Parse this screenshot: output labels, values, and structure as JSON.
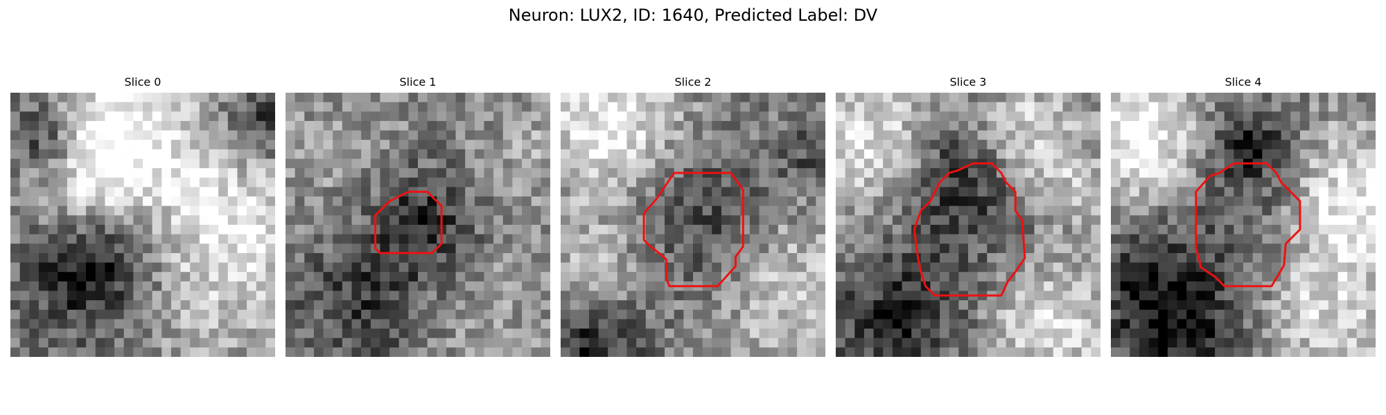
{
  "figure": {
    "title": "Neuron: LUX2, ID: 1640, Predicted Label: DV"
  },
  "colors": {
    "contour": "#ee1111",
    "background": "#ffffff"
  },
  "panels": [
    {
      "title": "Slice 0",
      "image_description_semantic": "grayscale-microscopy-patch",
      "contour_points_grid": []
    },
    {
      "title": "Slice 1",
      "image_description_semantic": "grayscale-microscopy-patch",
      "contour_points_grid": [
        [
          13,
          10.5
        ],
        [
          15,
          10.5
        ],
        [
          16.5,
          12
        ],
        [
          16.5,
          16
        ],
        [
          15.5,
          17
        ],
        [
          13,
          17
        ],
        [
          10,
          17
        ],
        [
          9.5,
          16.5
        ],
        [
          9.5,
          13
        ],
        [
          11,
          11.5
        ]
      ]
    },
    {
      "title": "Slice 2",
      "image_description_semantic": "grayscale-microscopy-patch",
      "contour_points_grid": [
        [
          12,
          8.5
        ],
        [
          18,
          8.5
        ],
        [
          19.3,
          10.3
        ],
        [
          19.3,
          16.3
        ],
        [
          18.5,
          17.4
        ],
        [
          18.5,
          18.4
        ],
        [
          16.6,
          20.5
        ],
        [
          11.5,
          20.5
        ],
        [
          11.2,
          19.7
        ],
        [
          11.2,
          17.7
        ],
        [
          10.4,
          17.0
        ],
        [
          9.4,
          16.2
        ],
        [
          8.8,
          15.6
        ],
        [
          8.8,
          12.8
        ],
        [
          10.1,
          11.3
        ]
      ]
    },
    {
      "title": "Slice 3",
      "image_description_semantic": "grayscale-microscopy-patch",
      "contour_points_grid": [
        [
          14.5,
          7.5
        ],
        [
          16.5,
          7.5
        ],
        [
          17.5,
          8.5
        ],
        [
          18.0,
          9.5
        ],
        [
          19.0,
          10.5
        ],
        [
          19.0,
          12.5
        ],
        [
          19.7,
          13.5
        ],
        [
          20.0,
          17.5
        ],
        [
          19.0,
          19.0
        ],
        [
          18.2,
          20.0
        ],
        [
          17.5,
          21.5
        ],
        [
          10.5,
          21.5
        ],
        [
          9.5,
          20.5
        ],
        [
          9.0,
          19.0
        ],
        [
          8.7,
          17.5
        ],
        [
          8.3,
          14.5
        ],
        [
          9.0,
          12.5
        ],
        [
          10.0,
          11.5
        ],
        [
          11.0,
          9.5
        ],
        [
          12.0,
          8.5
        ],
        [
          13.0,
          8.2
        ]
      ]
    },
    {
      "title": "Slice 4",
      "image_description_semantic": "grayscale-microscopy-patch",
      "contour_points_grid": [
        [
          13.0,
          7.5
        ],
        [
          16.5,
          7.5
        ],
        [
          17.5,
          8.5
        ],
        [
          18.0,
          9.5
        ],
        [
          20.0,
          11.5
        ],
        [
          20.0,
          14.5
        ],
        [
          18.5,
          16.0
        ],
        [
          18.3,
          18.3
        ],
        [
          17.0,
          20.5
        ],
        [
          12.0,
          20.5
        ],
        [
          11.0,
          19.5
        ],
        [
          9.5,
          18.5
        ],
        [
          9.3,
          17.5
        ],
        [
          9.0,
          16.5
        ],
        [
          9.0,
          10.5
        ],
        [
          10.5,
          8.8
        ],
        [
          11.5,
          8.5
        ]
      ]
    }
  ]
}
